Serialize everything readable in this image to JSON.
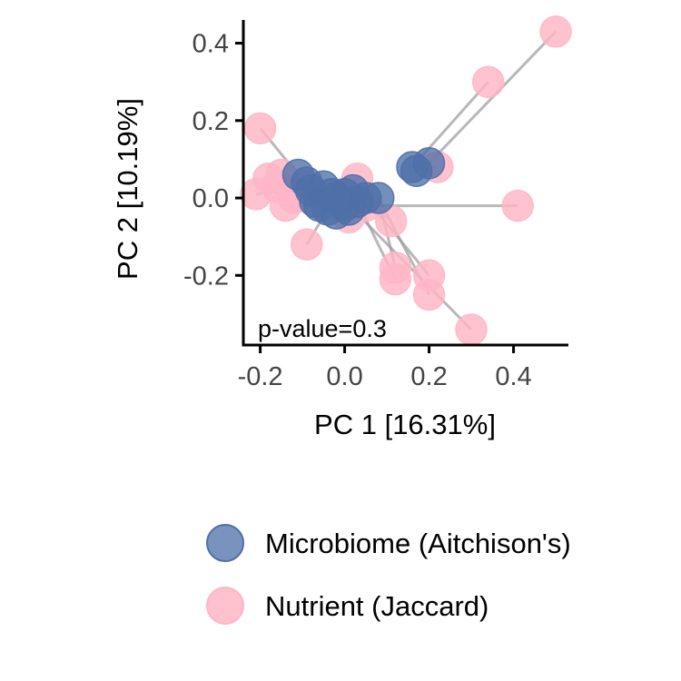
{
  "chart_data": {
    "type": "scatter",
    "title": "",
    "xlabel": "PC 1 [16.31%]",
    "ylabel": "PC 2 [10.19%]",
    "xlim": [
      -0.24,
      0.53
    ],
    "ylim": [
      -0.38,
      0.46
    ],
    "xticks": [
      -0.2,
      0.0,
      0.2,
      0.4
    ],
    "xtick_labels": [
      "-0.2",
      "0.0",
      "0.2",
      "0.4"
    ],
    "yticks": [
      -0.2,
      0.0,
      0.2,
      0.4
    ],
    "ytick_labels": [
      "-0.2",
      "0.0",
      "0.2",
      "0.4"
    ],
    "grid": false,
    "legend": "bottom",
    "annotation": "p-value=0.3",
    "series": [
      {
        "name": "Microbiome (Aitchison's)",
        "color": "#4E6FA8",
        "points": [
          [
            -0.11,
            0.06
          ],
          [
            -0.08,
            0.02
          ],
          [
            -0.05,
            0.03
          ],
          [
            -0.07,
            -0.01
          ],
          [
            -0.03,
            0.01
          ],
          [
            -0.06,
            -0.02
          ],
          [
            -0.02,
            -0.04
          ],
          [
            0.0,
            -0.02
          ],
          [
            0.02,
            0.02
          ],
          [
            0.03,
            -0.01
          ],
          [
            0.05,
            0.0
          ],
          [
            0.08,
            0.0
          ],
          [
            0.16,
            0.08
          ],
          [
            0.2,
            0.09
          ],
          [
            -0.04,
            -0.03
          ],
          [
            0.01,
            -0.03
          ],
          [
            -0.09,
            0.04
          ],
          [
            0.0,
            0.01
          ],
          [
            0.17,
            0.07
          ],
          [
            -0.02,
            0.0
          ]
        ]
      },
      {
        "name": "Nutrient (Jaccard)",
        "color": "#FFB6C6",
        "points": [
          [
            -0.2,
            0.18
          ],
          [
            -0.18,
            0.05
          ],
          [
            -0.21,
            0.01
          ],
          [
            -0.15,
            0.06
          ],
          [
            -0.16,
            0.03
          ],
          [
            -0.14,
            -0.02
          ],
          [
            -0.12,
            0.0
          ],
          [
            -0.1,
            0.01
          ],
          [
            -0.09,
            -0.12
          ],
          [
            0.03,
            0.05
          ],
          [
            0.0,
            0.0
          ],
          [
            0.01,
            -0.05
          ],
          [
            0.11,
            -0.06
          ],
          [
            0.12,
            -0.18
          ],
          [
            0.12,
            -0.21
          ],
          [
            0.2,
            -0.2
          ],
          [
            0.2,
            -0.25
          ],
          [
            0.3,
            -0.34
          ],
          [
            0.22,
            0.08
          ],
          [
            0.41,
            -0.02
          ],
          [
            0.34,
            0.3
          ],
          [
            0.5,
            0.43
          ],
          [
            -0.03,
            0.01
          ],
          [
            0.05,
            -0.02
          ]
        ]
      }
    ],
    "links": [
      [
        [
          -0.11,
          0.06
        ],
        [
          -0.2,
          0.18
        ]
      ],
      [
        [
          -0.08,
          0.02
        ],
        [
          -0.18,
          0.05
        ]
      ],
      [
        [
          -0.05,
          0.03
        ],
        [
          -0.21,
          0.01
        ]
      ],
      [
        [
          -0.07,
          -0.01
        ],
        [
          -0.15,
          0.06
        ]
      ],
      [
        [
          -0.03,
          0.01
        ],
        [
          -0.16,
          0.03
        ]
      ],
      [
        [
          -0.06,
          -0.02
        ],
        [
          -0.14,
          -0.02
        ]
      ],
      [
        [
          -0.02,
          -0.04
        ],
        [
          -0.12,
          0.0
        ]
      ],
      [
        [
          0.0,
          -0.02
        ],
        [
          -0.1,
          0.01
        ]
      ],
      [
        [
          -0.04,
          -0.03
        ],
        [
          -0.09,
          -0.12
        ]
      ],
      [
        [
          0.02,
          0.02
        ],
        [
          0.03,
          0.05
        ]
      ],
      [
        [
          0.03,
          -0.01
        ],
        [
          0.0,
          0.0
        ]
      ],
      [
        [
          0.01,
          -0.03
        ],
        [
          0.01,
          -0.05
        ]
      ],
      [
        [
          0.05,
          0.0
        ],
        [
          0.11,
          -0.06
        ]
      ],
      [
        [
          0.08,
          0.0
        ],
        [
          0.12,
          -0.18
        ]
      ],
      [
        [
          0.03,
          -0.01
        ],
        [
          0.12,
          -0.21
        ]
      ],
      [
        [
          0.05,
          0.0
        ],
        [
          0.2,
          -0.2
        ]
      ],
      [
        [
          0.08,
          0.0
        ],
        [
          0.2,
          -0.25
        ]
      ],
      [
        [
          0.02,
          -0.03
        ],
        [
          0.3,
          -0.34
        ]
      ],
      [
        [
          0.16,
          0.08
        ],
        [
          0.22,
          0.08
        ]
      ],
      [
        [
          0.0,
          -0.02
        ],
        [
          0.41,
          -0.02
        ]
      ],
      [
        [
          0.16,
          0.08
        ],
        [
          0.34,
          0.3
        ]
      ],
      [
        [
          0.2,
          0.09
        ],
        [
          0.5,
          0.43
        ]
      ],
      [
        [
          -0.09,
          0.04
        ],
        [
          -0.03,
          0.01
        ]
      ],
      [
        [
          0.0,
          0.01
        ],
        [
          0.05,
          -0.02
        ]
      ],
      [
        [
          -0.02,
          0.0
        ],
        [
          -0.12,
          0.0
        ]
      ]
    ]
  }
}
